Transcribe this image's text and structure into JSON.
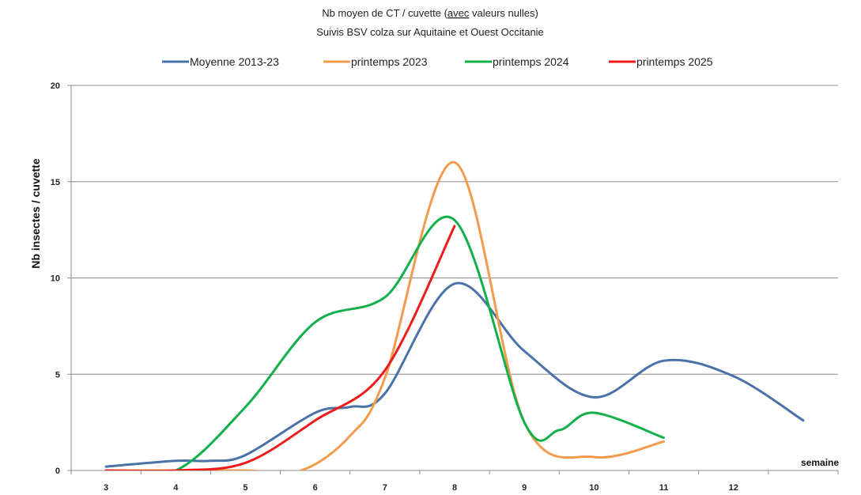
{
  "chart_data": {
    "type": "line",
    "title": "",
    "subtitle": [
      "Nb moyen de CT / cuvette (avec valeurs nulles)",
      "Suivis BSV colza sur Aquitaine et Ouest Occitanie"
    ],
    "xlabel": "semaine",
    "ylabel": "Nb insectes / cuvette",
    "ylim": [
      0,
      20
    ],
    "yticks": [
      "0",
      "5",
      "10",
      "15",
      "20"
    ],
    "xticks": [
      "3",
      "4",
      "5",
      "6",
      "7",
      "8",
      "9",
      "10",
      "11",
      "12"
    ],
    "x_range": [
      2.5,
      13.5
    ],
    "grid": "horizontal",
    "legend_placement": "top",
    "series": [
      {
        "name": "Moyenne 2013-23",
        "color": "#4a72a8",
        "x": [
          3,
          4,
          4.5,
          5,
          6,
          6.5,
          7,
          8,
          9,
          10,
          11,
          12,
          13
        ],
        "y": [
          0.2,
          0.5,
          0.5,
          0.8,
          3.0,
          3.3,
          4.0,
          9.7,
          6.2,
          3.8,
          5.7,
          4.9,
          2.6
        ]
      },
      {
        "name": "printemps 2023",
        "color": "#f39b4c",
        "x": [
          3,
          4,
          5,
          5.8,
          6.5,
          7,
          8,
          9,
          10,
          11
        ],
        "y": [
          0,
          0,
          0,
          0,
          1.8,
          4.8,
          16.0,
          2.5,
          0.7,
          1.5
        ]
      },
      {
        "name": "printemps 2024",
        "color": "#12b04a",
        "x": [
          3,
          4,
          5,
          6,
          7,
          8,
          9,
          9.5,
          10,
          11
        ],
        "y": [
          0,
          0,
          3.3,
          7.7,
          9.0,
          13.0,
          2.5,
          2.1,
          3.0,
          1.7
        ]
      },
      {
        "name": "printemps 2025",
        "color": "#ee1c1c",
        "x": [
          3,
          4,
          5,
          6,
          7,
          8
        ],
        "y": [
          0,
          0,
          0.4,
          2.6,
          5.2,
          12.7
        ]
      }
    ]
  }
}
